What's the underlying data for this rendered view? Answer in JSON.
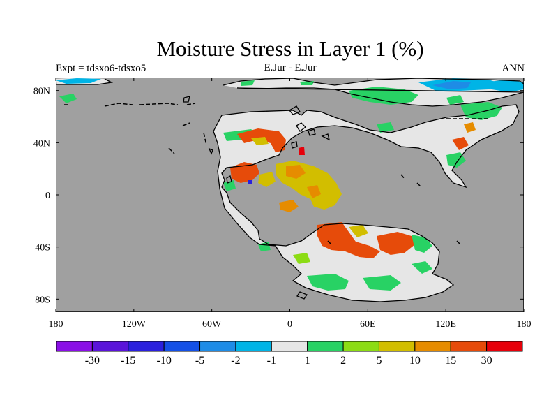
{
  "title": "Moisture Stress in Layer 1 (%)",
  "left_subtitle": "Expt = tdsxo6-tdsxo5",
  "center_subtitle": "E.Jur - E.Jur",
  "right_subtitle": "ANN",
  "colors": {
    "ocean": "#a0a0a0",
    "land_neutral": "#e6e6e6"
  },
  "lon_ticks": [
    "180",
    "120W",
    "60W",
    "0",
    "60E",
    "120E",
    "180"
  ],
  "lat_ticks": [
    "80N",
    "40N",
    "0",
    "40S",
    "80S"
  ],
  "colorbar": {
    "colors": [
      "#8a0fe6",
      "#5a14d9",
      "#2a20dd",
      "#1450e6",
      "#1e8ce6",
      "#00b4e6",
      "#e6e6e6",
      "#28d264",
      "#8cdc14",
      "#d2be00",
      "#e68c00",
      "#e64b0a",
      "#e6000a"
    ],
    "labels": [
      "-30",
      "-15",
      "-10",
      "-5",
      "-2",
      "-1",
      "1",
      "2",
      "5",
      "10",
      "15",
      "30"
    ]
  }
}
